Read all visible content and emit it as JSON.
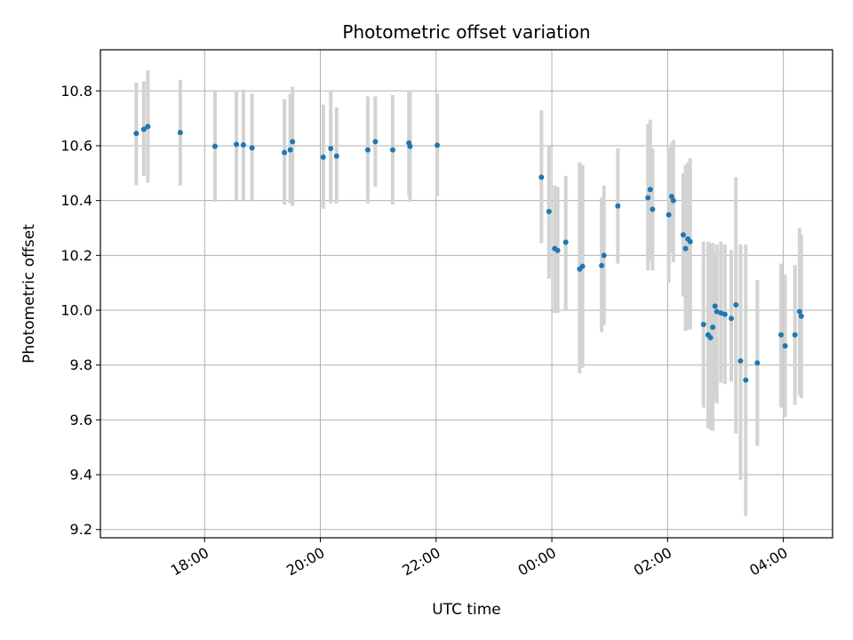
{
  "chart_data": {
    "type": "scatter",
    "title": "Photometric offset variation",
    "xlabel": "UTC time",
    "ylabel": "Photometric offset",
    "x_axis": {
      "unit": "hours since 00:00 of the second day (negative = previous day)",
      "range": [
        -7.8,
        4.85
      ],
      "ticks": [
        {
          "value": -6,
          "label": "18:00"
        },
        {
          "value": -4,
          "label": "20:00"
        },
        {
          "value": -2,
          "label": "22:00"
        },
        {
          "value": 0,
          "label": "00:00"
        },
        {
          "value": 2,
          "label": "02:00"
        },
        {
          "value": 4,
          "label": "04:00"
        }
      ]
    },
    "y_axis": {
      "range": [
        9.17,
        10.95
      ],
      "ticks": [
        9.2,
        9.4,
        9.6,
        9.8,
        10.0,
        10.2,
        10.4,
        10.6,
        10.8
      ]
    },
    "grid": true,
    "colors": {
      "points": "#1f77b4",
      "errorbars": "#d3d3d3",
      "grid": "#b0b0b0"
    },
    "points": [
      {
        "t": -7.18,
        "y": 10.645,
        "lo": 10.455,
        "hi": 10.83
      },
      {
        "t": -7.05,
        "y": 10.66,
        "lo": 10.49,
        "hi": 10.835
      },
      {
        "t": -6.98,
        "y": 10.67,
        "lo": 10.465,
        "hi": 10.875
      },
      {
        "t": -6.42,
        "y": 10.648,
        "lo": 10.455,
        "hi": 10.84
      },
      {
        "t": -5.82,
        "y": 10.598,
        "lo": 10.395,
        "hi": 10.8
      },
      {
        "t": -5.45,
        "y": 10.605,
        "lo": 10.4,
        "hi": 10.8
      },
      {
        "t": -5.33,
        "y": 10.603,
        "lo": 10.4,
        "hi": 10.805
      },
      {
        "t": -5.18,
        "y": 10.592,
        "lo": 10.4,
        "hi": 10.79
      },
      {
        "t": -4.62,
        "y": 10.575,
        "lo": 10.385,
        "hi": 10.77
      },
      {
        "t": -4.52,
        "y": 10.585,
        "lo": 10.39,
        "hi": 10.79
      },
      {
        "t": -4.48,
        "y": 10.615,
        "lo": 10.38,
        "hi": 10.815
      },
      {
        "t": -3.95,
        "y": 10.558,
        "lo": 10.37,
        "hi": 10.75
      },
      {
        "t": -3.82,
        "y": 10.59,
        "lo": 10.39,
        "hi": 10.8
      },
      {
        "t": -3.72,
        "y": 10.562,
        "lo": 10.39,
        "hi": 10.74
      },
      {
        "t": -3.18,
        "y": 10.585,
        "lo": 10.39,
        "hi": 10.78
      },
      {
        "t": -3.05,
        "y": 10.615,
        "lo": 10.45,
        "hi": 10.78
      },
      {
        "t": -2.75,
        "y": 10.585,
        "lo": 10.385,
        "hi": 10.785
      },
      {
        "t": -2.47,
        "y": 10.61,
        "lo": 10.42,
        "hi": 10.8
      },
      {
        "t": -2.45,
        "y": 10.598,
        "lo": 10.395,
        "hi": 10.8
      },
      {
        "t": -1.98,
        "y": 10.602,
        "lo": 10.415,
        "hi": 10.79
      },
      {
        "t": -0.18,
        "y": 10.485,
        "lo": 10.245,
        "hi": 10.73
      },
      {
        "t": -0.05,
        "y": 10.36,
        "lo": 10.115,
        "hi": 10.6
      },
      {
        "t": 0.05,
        "y": 10.225,
        "lo": 9.99,
        "hi": 10.455
      },
      {
        "t": 0.1,
        "y": 10.218,
        "lo": 9.99,
        "hi": 10.45
      },
      {
        "t": 0.24,
        "y": 10.248,
        "lo": 10.0,
        "hi": 10.49
      },
      {
        "t": 0.48,
        "y": 10.15,
        "lo": 9.77,
        "hi": 10.54
      },
      {
        "t": 0.53,
        "y": 10.16,
        "lo": 9.79,
        "hi": 10.53
      },
      {
        "t": 0.86,
        "y": 10.163,
        "lo": 9.92,
        "hi": 10.41
      },
      {
        "t": 0.9,
        "y": 10.2,
        "lo": 9.945,
        "hi": 10.455
      },
      {
        "t": 1.14,
        "y": 10.38,
        "lo": 10.17,
        "hi": 10.59
      },
      {
        "t": 1.66,
        "y": 10.41,
        "lo": 10.145,
        "hi": 10.68
      },
      {
        "t": 1.7,
        "y": 10.44,
        "lo": 10.18,
        "hi": 10.695
      },
      {
        "t": 1.74,
        "y": 10.368,
        "lo": 10.145,
        "hi": 10.59
      },
      {
        "t": 2.02,
        "y": 10.348,
        "lo": 10.1,
        "hi": 10.595
      },
      {
        "t": 2.07,
        "y": 10.415,
        "lo": 10.21,
        "hi": 10.61
      },
      {
        "t": 2.1,
        "y": 10.4,
        "lo": 10.175,
        "hi": 10.62
      },
      {
        "t": 2.27,
        "y": 10.275,
        "lo": 10.05,
        "hi": 10.5
      },
      {
        "t": 2.31,
        "y": 10.225,
        "lo": 9.925,
        "hi": 10.53
      },
      {
        "t": 2.35,
        "y": 10.26,
        "lo": 9.93,
        "hi": 10.54
      },
      {
        "t": 2.39,
        "y": 10.25,
        "lo": 9.93,
        "hi": 10.555
      },
      {
        "t": 2.62,
        "y": 9.948,
        "lo": 9.645,
        "hi": 10.25
      },
      {
        "t": 2.7,
        "y": 9.91,
        "lo": 9.57,
        "hi": 10.25
      },
      {
        "t": 2.74,
        "y": 9.9,
        "lo": 9.565,
        "hi": 10.245
      },
      {
        "t": 2.78,
        "y": 9.938,
        "lo": 9.56,
        "hi": 10.245
      },
      {
        "t": 2.82,
        "y": 10.015,
        "lo": 9.68,
        "hi": 10.21
      },
      {
        "t": 2.85,
        "y": 9.995,
        "lo": 9.66,
        "hi": 10.24
      },
      {
        "t": 2.92,
        "y": 9.99,
        "lo": 9.735,
        "hi": 10.25
      },
      {
        "t": 2.99,
        "y": 9.985,
        "lo": 9.73,
        "hi": 10.24
      },
      {
        "t": 3.1,
        "y": 9.97,
        "lo": 9.74,
        "hi": 10.22
      },
      {
        "t": 3.18,
        "y": 10.02,
        "lo": 9.55,
        "hi": 10.485
      },
      {
        "t": 3.26,
        "y": 9.815,
        "lo": 9.38,
        "hi": 10.24
      },
      {
        "t": 3.35,
        "y": 9.745,
        "lo": 9.25,
        "hi": 10.24
      },
      {
        "t": 3.55,
        "y": 9.808,
        "lo": 9.505,
        "hi": 10.11
      },
      {
        "t": 3.96,
        "y": 9.91,
        "lo": 9.645,
        "hi": 10.17
      },
      {
        "t": 4.03,
        "y": 9.87,
        "lo": 9.61,
        "hi": 10.13
      },
      {
        "t": 4.2,
        "y": 9.91,
        "lo": 9.655,
        "hi": 10.165
      },
      {
        "t": 4.28,
        "y": 9.995,
        "lo": 9.69,
        "hi": 10.3
      },
      {
        "t": 4.31,
        "y": 9.978,
        "lo": 9.68,
        "hi": 10.275
      }
    ]
  }
}
